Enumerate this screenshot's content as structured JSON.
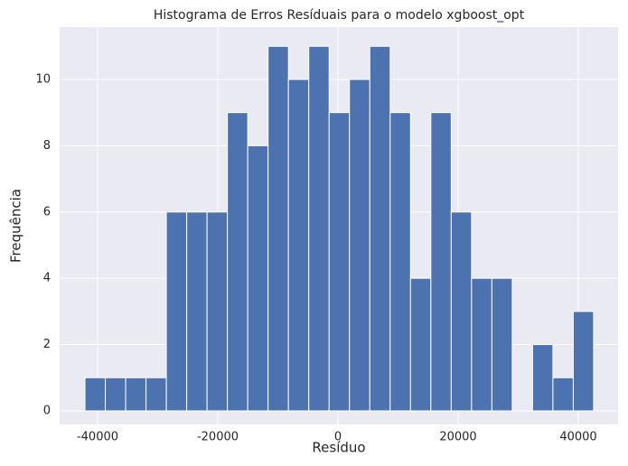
{
  "chart_data": {
    "type": "histogram",
    "title": "Histograma de Erros Resíduais para o modelo xgboost_opt",
    "x_label": "Resíduo",
    "y_label": "Frequência",
    "bins": [
      -42100,
      -38714,
      -35328,
      -31942,
      -28556,
      -25170,
      -21784,
      -18398,
      -15012,
      -11626,
      -8240,
      -4854,
      -1468,
      1918,
      5304,
      8690,
      12076,
      15462,
      18848,
      22234,
      25620,
      29006,
      32392,
      35778,
      39164,
      42550
    ],
    "values": [
      1,
      1,
      1,
      1,
      6,
      6,
      6,
      9,
      8,
      11,
      10,
      11,
      9,
      10,
      11,
      9,
      4,
      9,
      6,
      4,
      4,
      0,
      2,
      1,
      3
    ],
    "color": "#4c72b0",
    "xlim": [
      -46316,
      46617
    ],
    "ylim": [
      -0.41,
      11.58
    ],
    "xticks": [
      -40000,
      -20000,
      0,
      20000,
      40000
    ],
    "yticks": [
      0,
      2,
      4,
      6,
      8,
      10
    ],
    "grid": true
  }
}
